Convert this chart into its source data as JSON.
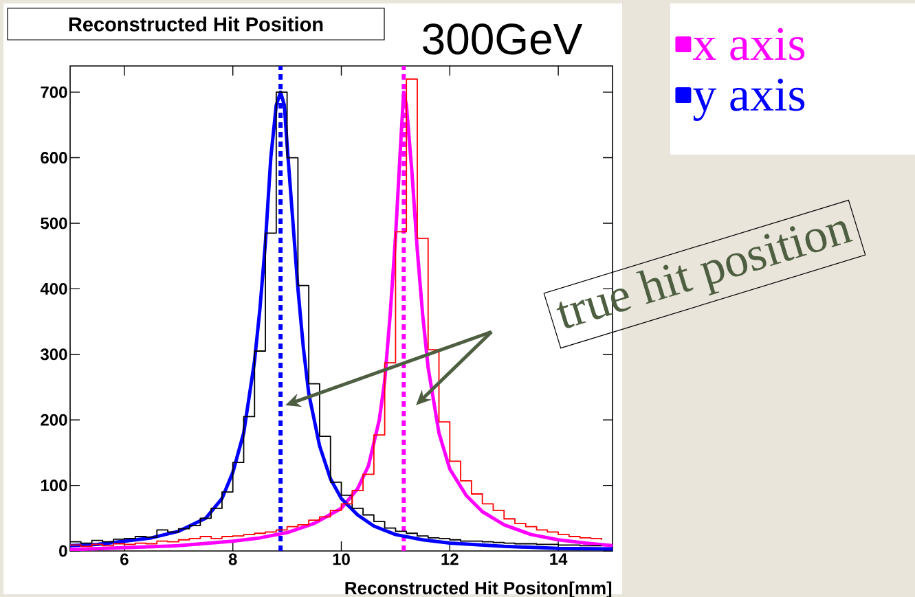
{
  "chart_data": {
    "type": "line",
    "title": "Reconstructed Hit Position",
    "subtitle": "300GeV",
    "xlabel": "Reconstructed Hit Positon[mm]",
    "annotations": [
      "true hit position"
    ],
    "xlim": [
      5,
      15
    ],
    "ylim": [
      0,
      740
    ],
    "xticks": [
      6,
      8,
      10,
      12,
      14
    ],
    "yticks": [
      0,
      100,
      200,
      300,
      400,
      500,
      600,
      700
    ],
    "grid": false,
    "legend": "top right",
    "line_style": "solid",
    "series": [
      {
        "name": "x axis",
        "color": "#ff00ff",
        "x": [
          5,
          6,
          7,
          8,
          8.5,
          9,
          9.5,
          10,
          10.3,
          10.5,
          10.7,
          10.8,
          10.9,
          11.0,
          11.1,
          11.15,
          11.2,
          11.3,
          11.4,
          11.5,
          11.6,
          11.8,
          12.0,
          12.3,
          12.6,
          13.0,
          13.5,
          14,
          14.5,
          15
        ],
        "values": [
          2,
          5,
          8,
          15,
          20,
          28,
          42,
          65,
          95,
          130,
          200,
          260,
          360,
          480,
          630,
          700,
          680,
          580,
          460,
          360,
          280,
          180,
          125,
          85,
          60,
          40,
          25,
          17,
          12,
          8
        ]
      },
      {
        "name": "y axis",
        "color": "#0000ff",
        "x": [
          5.0,
          5.5,
          6.0,
          6.5,
          7.0,
          7.5,
          7.8,
          8.0,
          8.2,
          8.4,
          8.5,
          8.6,
          8.7,
          8.8,
          8.88,
          8.95,
          9.0,
          9.1,
          9.2,
          9.3,
          9.4,
          9.6,
          9.8,
          10.0,
          10.3,
          10.6,
          11.0,
          11.5,
          12,
          13,
          14,
          15
        ],
        "values": [
          8,
          10,
          15,
          20,
          30,
          50,
          80,
          120,
          180,
          290,
          370,
          470,
          600,
          680,
          700,
          680,
          620,
          510,
          400,
          310,
          240,
          160,
          110,
          80,
          55,
          38,
          25,
          17,
          12,
          7,
          4,
          3
        ]
      },
      {
        "type": "step",
        "color": "#000000",
        "x": [
          5.0,
          5.2,
          5.4,
          5.6,
          5.8,
          6.0,
          6.2,
          6.4,
          6.6,
          6.8,
          7.0,
          7.2,
          7.4,
          7.6,
          7.8,
          8.0,
          8.2,
          8.4,
          8.6,
          8.8,
          9.0,
          9.2,
          9.4,
          9.6,
          9.8,
          10.0,
          10.2,
          10.4,
          10.6,
          10.8,
          11.0,
          11.2,
          11.4,
          11.6,
          11.8,
          12.0,
          12.2,
          12.4,
          12.6,
          12.8,
          13.0,
          13.2,
          13.4,
          13.6,
          13.8,
          14.0,
          14.2,
          14.4,
          14.6,
          14.8
        ],
        "values": [
          14,
          12,
          16,
          14,
          18,
          19,
          22,
          21,
          32,
          29,
          34,
          39,
          50,
          65,
          90,
          135,
          205,
          305,
          485,
          700,
          600,
          405,
          255,
          175,
          105,
          85,
          65,
          55,
          45,
          35,
          30,
          27,
          23,
          20,
          19,
          17,
          15,
          15,
          14,
          13,
          12,
          11,
          11,
          10,
          10,
          9,
          9,
          8,
          8,
          8
        ]
      },
      {
        "type": "step",
        "color": "#ff0000",
        "x": [
          5.0,
          5.2,
          5.4,
          5.6,
          5.8,
          6.0,
          6.2,
          6.4,
          6.6,
          6.8,
          7.0,
          7.2,
          7.4,
          7.6,
          7.8,
          8.0,
          8.2,
          8.4,
          8.6,
          8.8,
          9.0,
          9.2,
          9.4,
          9.6,
          9.8,
          10.0,
          10.2,
          10.4,
          10.6,
          10.8,
          11.0,
          11.2,
          11.4,
          11.6,
          11.8,
          12.0,
          12.2,
          12.4,
          12.6,
          12.8,
          13.0,
          13.2,
          13.4,
          13.6,
          13.8,
          14.0,
          14.2,
          14.4,
          14.6,
          14.8
        ],
        "values": [
          9,
          7,
          10,
          8,
          11,
          10,
          12,
          11,
          15,
          14,
          17,
          19,
          22,
          19,
          22,
          23,
          25,
          27,
          29,
          32,
          37,
          40,
          47,
          52,
          62,
          72,
          92,
          117,
          177,
          287,
          487,
          720,
          477,
          307,
          197,
          137,
          107,
          87,
          72,
          62,
          49,
          42,
          37,
          32,
          29,
          25,
          22,
          20,
          19,
          17
        ]
      }
    ],
    "ref_lines": [
      {
        "axis": "x",
        "value": 8.88,
        "color": "#0000ff",
        "line_style": "dotted"
      },
      {
        "axis": "x",
        "value": 11.15,
        "color": "#ff00ff",
        "line_style": "dotted"
      }
    ]
  }
}
